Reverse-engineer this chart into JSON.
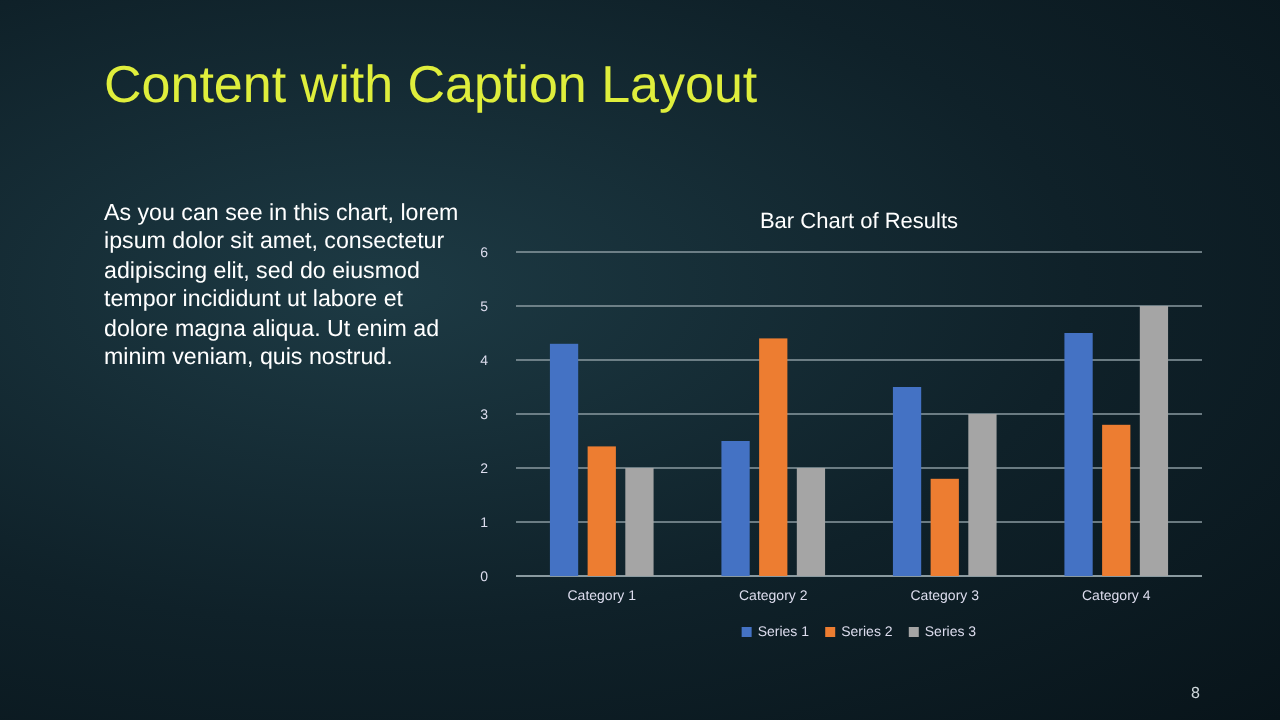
{
  "chart_data": {
    "type": "bar",
    "title": "Bar Chart of Results",
    "categories": [
      "Category 1",
      "Category 2",
      "Category 3",
      "Category 4"
    ],
    "series": [
      {
        "name": "Series 1",
        "color": "#4472c4",
        "values": [
          4.3,
          2.5,
          3.5,
          4.5
        ]
      },
      {
        "name": "Series 2",
        "color": "#ed7d31",
        "values": [
          2.4,
          4.4,
          1.8,
          2.8
        ]
      },
      {
        "name": "Series 3",
        "color": "#a5a5a5",
        "values": [
          2,
          2,
          3,
          5
        ]
      }
    ],
    "ylim": [
      0,
      6
    ],
    "yticks": [
      0,
      1,
      2,
      3,
      4,
      5,
      6
    ],
    "grid": "y",
    "legend": "bottom",
    "annotations": [
      "Content with Caption Layout",
      "As you can see in this chart, lorem ipsum dolor sit amet, consectetur adipiscing elit, sed do eiusmod tempor incididunt ut labore et dolore magna aliqua. Ut enim ad minim veniam, quis nostrud.",
      "8"
    ]
  }
}
